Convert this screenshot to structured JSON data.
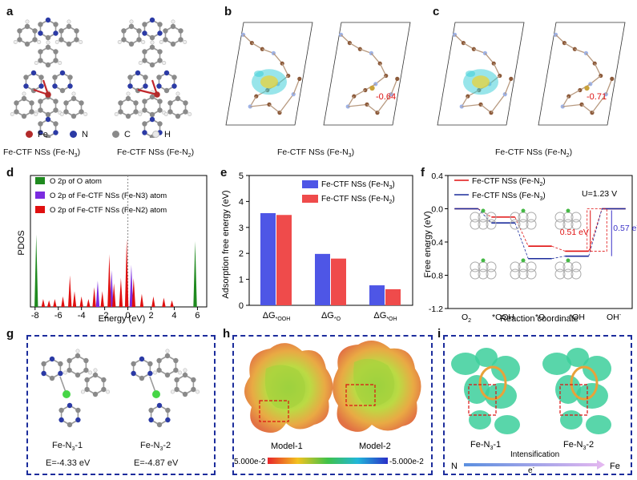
{
  "panels": {
    "a": {
      "label": "a",
      "legend": [
        {
          "text": "Fe",
          "color": "#b22a2a"
        },
        {
          "text": "N",
          "color": "#2b3aa5"
        },
        {
          "text": "C",
          "color": "#8a8a8a"
        },
        {
          "text": "H",
          "color": "#e9e9e9"
        }
      ],
      "caption_left": "Fe-CTF NSs (Fe-N",
      "caption_left_sub": "3",
      "caption_right": "Fe-CTF NSs (Fe-N",
      "caption_right_sub": "2"
    },
    "b": {
      "label": "b",
      "charge": "-0.64",
      "caption": "Fe-CTF NSs (Fe-N",
      "caption_sub": "3"
    },
    "c": {
      "label": "c",
      "charge": "-0.71",
      "caption": "Fe-CTF NSs (Fe-N",
      "caption_sub": "2"
    },
    "g": {
      "label": "g",
      "model1": "Fe-N",
      "model1_sub": "3",
      "model1_suffix": "-1",
      "model2": "Fe-N",
      "model2_sub": "3",
      "model2_suffix": "-2",
      "energy1": "E=-4.33 eV",
      "energy2": "E=-4.87 eV"
    },
    "h": {
      "label": "h",
      "model1": "Model-1",
      "model2": "Model-2",
      "scale_left": "5.000e-2",
      "scale_right": "-5.000e-2"
    },
    "i": {
      "label": "i",
      "model1": "Fe-N",
      "model1_sub": "3",
      "model1_suffix": "-1",
      "model2": "Fe-N",
      "model2_sub": "3",
      "model2_suffix": "-2",
      "intens": "Intensification",
      "left": "N",
      "right": "Fe",
      "electron": "e",
      "electron_sup": "-"
    }
  },
  "chart_data": [
    {
      "id": "d",
      "type": "area",
      "label": "d",
      "ylabel": "PDOS",
      "xlabel": "Energy (eV)",
      "xlim": [
        -8.4,
        6.8
      ],
      "xticks": [
        -8,
        -6,
        -4,
        -2,
        0,
        2,
        4,
        6
      ],
      "legend": [
        {
          "name": "O 2p of O atom",
          "color": "#1f8a1f"
        },
        {
          "name": "O 2p of Fe-CTF NSs (Fe-N3) atom",
          "color": "#7b2be0"
        },
        {
          "name": "O 2p of Fe-CTF NSs (Fe-N2) atom",
          "color": "#e01010"
        }
      ],
      "series": [
        {
          "name": "O 2p of O atom",
          "peaks": [
            [
              -7.9,
              0.55
            ],
            [
              5.8,
              0.5
            ]
          ]
        },
        {
          "name": "O 2p of Fe-CTF NSs (Fe-N3) atom",
          "peaks": [
            [
              -2.6,
              0.2
            ],
            [
              -1.4,
              0.28
            ],
            [
              0.3,
              0.32
            ]
          ]
        },
        {
          "name": "O 2p of Fe-CTF NSs (Fe-N2) atom",
          "peaks": [
            [
              -7.3,
              0.06
            ],
            [
              -6.8,
              0.05
            ],
            [
              -6.3,
              0.06
            ],
            [
              -5.6,
              0.08
            ],
            [
              -5.0,
              0.24
            ],
            [
              -4.6,
              0.12
            ],
            [
              -4.0,
              0.08
            ],
            [
              -3.4,
              0.06
            ],
            [
              -2.9,
              0.15
            ],
            [
              -2.2,
              0.12
            ],
            [
              -1.6,
              0.4
            ],
            [
              -1.2,
              0.18
            ],
            [
              -0.6,
              0.22
            ],
            [
              -0.1,
              0.52
            ],
            [
              0.5,
              0.22
            ],
            [
              1.2,
              0.1
            ],
            [
              2.2,
              0.08
            ],
            [
              3.1,
              0.07
            ],
            [
              3.8,
              0.05
            ]
          ]
        }
      ]
    },
    {
      "id": "e",
      "type": "bar",
      "label": "e",
      "ylabel": "Adsorption free energy (eV)",
      "ylim": [
        0,
        5
      ],
      "yticks": [
        0,
        1,
        2,
        3,
        4,
        5
      ],
      "categories": [
        {
          "pre": "ΔG",
          "sub": "*OOH"
        },
        {
          "pre": "ΔG",
          "sub": "*O"
        },
        {
          "pre": "ΔG",
          "sub": "*OH"
        }
      ],
      "series": [
        {
          "name": "Fe-CTF NSs (Fe-N",
          "sub": "3",
          "color": "#4e56e6",
          "values": [
            3.55,
            1.98,
            0.77
          ]
        },
        {
          "name": "Fe-CTF NSs (Fe-N",
          "sub": "2",
          "color": "#ef4b4b",
          "values": [
            3.48,
            1.8,
            0.62
          ]
        }
      ]
    },
    {
      "id": "f",
      "type": "line",
      "label": "f",
      "ylabel": "Free energy (eV)",
      "xlabel": "Reaction coordinate",
      "ylim": [
        -1.2,
        0.4
      ],
      "yticks": [
        0.4,
        0.0,
        -0.4,
        -0.8,
        -1.2
      ],
      "ytick_labels": [
        "0.4",
        "0.0",
        "-0.4",
        "-0.8",
        "-1.2"
      ],
      "x_categories": [
        "O2",
        "*OOH",
        "*O",
        "*OH",
        "OH-"
      ],
      "potential": "U=1.23 V",
      "series": [
        {
          "name": "Fe-CTF NSs (Fe-N",
          "sub": "2",
          "color": "#e01010",
          "values": [
            0.0,
            -0.1,
            -0.45,
            -0.51,
            0.0
          ]
        },
        {
          "name": "Fe-CTF NSs (Fe-N",
          "sub": "3",
          "color": "#1c2d9c",
          "values": [
            0.0,
            -0.17,
            -0.6,
            -0.57,
            0.0
          ]
        }
      ],
      "annotations": [
        {
          "text": "0.51 eV",
          "color": "#e01010"
        },
        {
          "text": "0.57 eV",
          "color": "#3c33c8"
        }
      ]
    }
  ]
}
